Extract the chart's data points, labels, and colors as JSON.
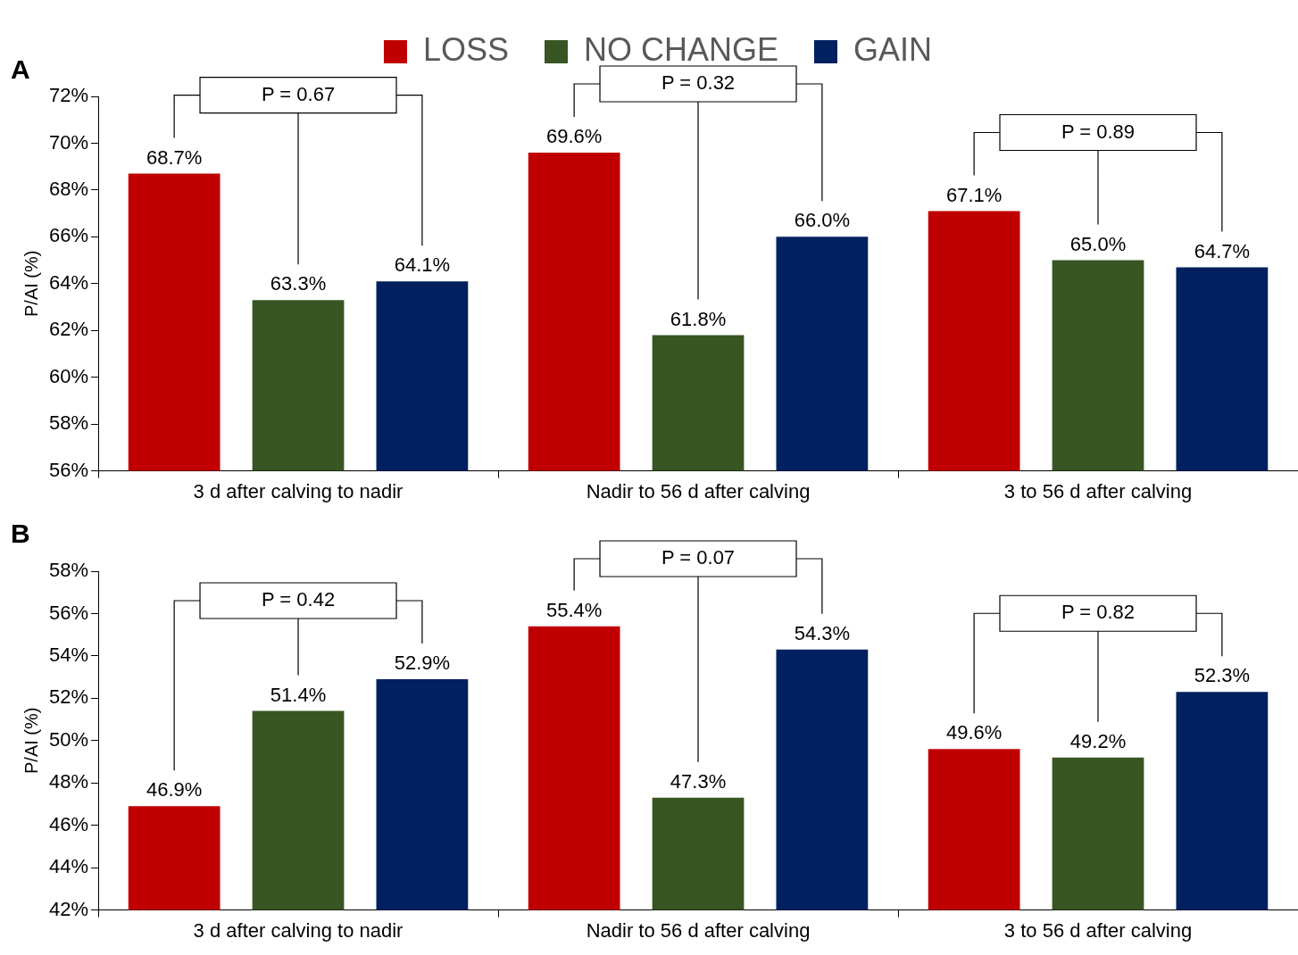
{
  "chart_data": [
    {
      "type": "bar",
      "title": "A",
      "ylabel": "P/AI (%)",
      "categories": [
        "3 d after calving to nadir",
        "Nadir to 56 d after calving",
        "3 to 56 d after calving"
      ],
      "series": [
        {
          "name": "LOSS",
          "color": "#c00000",
          "values": [
            68.7,
            69.6,
            67.1
          ],
          "value_labels": [
            "68.7%",
            "69.6%",
            "67.1%"
          ]
        },
        {
          "name": "NO CHANGE",
          "color": "#375623",
          "values": [
            63.3,
            61.8,
            65.0
          ],
          "value_labels": [
            "63.3%",
            "61.8%",
            "65.0%"
          ]
        },
        {
          "name": "GAIN",
          "color": "#002060",
          "values": [
            64.1,
            66.0,
            64.7
          ],
          "value_labels": [
            "64.1%",
            "66.0%",
            "64.7%"
          ]
        }
      ],
      "ylim": [
        56,
        72
      ],
      "yticks": [
        {
          "value": 56,
          "label": "56%"
        },
        {
          "value": 58,
          "label": "58%"
        },
        {
          "value": 60,
          "label": "60%"
        },
        {
          "value": 62,
          "label": "62%"
        },
        {
          "value": 64,
          "label": "64%"
        },
        {
          "value": 66,
          "label": "66%"
        },
        {
          "value": 68,
          "label": "68%"
        },
        {
          "value": 70,
          "label": "70%"
        },
        {
          "value": 72,
          "label": "72%"
        }
      ],
      "annotations": [
        {
          "text": "P = 0.67",
          "x": "3 d after calving to nadir"
        },
        {
          "text": "P = 0.32",
          "x": "Nadir to 56 d after calving"
        },
        {
          "text": "P = 0.89",
          "x": "3 to 56 d after calving"
        }
      ],
      "legend": "top",
      "grid": false
    },
    {
      "type": "bar",
      "title": "B",
      "ylabel": "P/AI (%)",
      "categories": [
        "3 d after calving to nadir",
        "Nadir to 56 d after calving",
        "3 to 56 d after calving"
      ],
      "series": [
        {
          "color": "#c00000",
          "values": [
            46.9,
            55.4,
            49.6
          ],
          "value_labels": [
            "46.9%",
            "55.4%",
            "49.6%"
          ]
        },
        {
          "color": "#375623",
          "values": [
            51.4,
            47.3,
            49.2
          ],
          "value_labels": [
            "51.4%",
            "47.3%",
            "49.2%"
          ]
        },
        {
          "color": "#002060",
          "values": [
            52.9,
            54.3,
            52.3
          ],
          "value_labels": [
            "52.9%",
            "54.3%",
            "52.3%"
          ]
        }
      ],
      "ylim": [
        42,
        58
      ],
      "yticks": [
        {
          "value": 42,
          "label": "42%"
        },
        {
          "value": 44,
          "label": "44%"
        },
        {
          "value": 46,
          "label": "46%"
        },
        {
          "value": 48,
          "label": "48%"
        },
        {
          "value": 50,
          "label": "50%"
        },
        {
          "value": 52,
          "label": "52%"
        },
        {
          "value": 54,
          "label": "54%"
        },
        {
          "value": 56,
          "label": "56%"
        },
        {
          "value": 58,
          "label": "58%"
        }
      ],
      "annotations": [
        {
          "text": "P = 0.42",
          "x": "3 d after calving to nadir"
        },
        {
          "text": "P = 0.07",
          "x": "Nadir to 56 d after calving"
        },
        {
          "text": "P = 0.82",
          "x": "3 to 56 d after calving"
        }
      ],
      "grid": false
    }
  ]
}
